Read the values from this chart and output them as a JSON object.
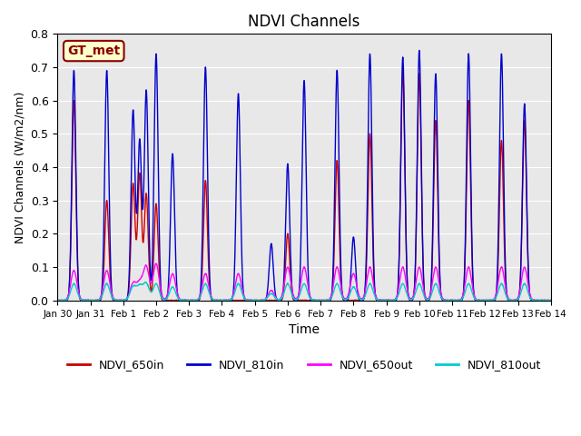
{
  "title": "NDVI Channels",
  "xlabel": "Time",
  "ylabel": "NDVI Channels (W/m2/nm)",
  "ylim": [
    0.0,
    0.8
  ],
  "background_color": "#e8e8e8",
  "label_text": "GT_met",
  "label_bg": "#ffffcc",
  "label_border": "#8b0000",
  "legend_labels": [
    "NDVI_650in",
    "NDVI_810in",
    "NDVI_650out",
    "NDVI_810out"
  ],
  "line_colors": [
    "#cc0000",
    "#0000cc",
    "#ff00ff",
    "#00cccc"
  ],
  "xtick_labels": [
    "Jan 30",
    "Jan 31",
    "Feb 1",
    "Feb 2",
    "Feb 3",
    "Feb 4",
    "Feb 5",
    "Feb 6",
    "Feb 7",
    "Feb 8",
    "Feb 9",
    "Feb 10",
    "Feb 11",
    "Feb 12",
    "Feb 13",
    "Feb 14"
  ],
  "n_days": 15,
  "peak_times": [
    0.5,
    1.5,
    2.3,
    2.5,
    2.7,
    3.0,
    3.5,
    4.5,
    5.5,
    6.5,
    7.0,
    7.5,
    8.5,
    9.0,
    9.5,
    10.5,
    11.0,
    11.5,
    12.5,
    13.5,
    14.2
  ],
  "peaks_810in": [
    0.69,
    0.69,
    0.57,
    0.48,
    0.63,
    0.74,
    0.44,
    0.7,
    0.62,
    0.17,
    0.41,
    0.66,
    0.69,
    0.19,
    0.74,
    0.73,
    0.75,
    0.68,
    0.74,
    0.74,
    0.59
  ],
  "peaks_650in": [
    0.6,
    0.3,
    0.35,
    0.38,
    0.32,
    0.29,
    0.0,
    0.36,
    0.0,
    0.0,
    0.2,
    0.0,
    0.42,
    0.0,
    0.5,
    0.69,
    0.68,
    0.54,
    0.6,
    0.48,
    0.54
  ],
  "peaks_650out": [
    0.09,
    0.09,
    0.05,
    0.05,
    0.1,
    0.11,
    0.08,
    0.08,
    0.08,
    0.03,
    0.1,
    0.1,
    0.1,
    0.08,
    0.1,
    0.1,
    0.1,
    0.1,
    0.1,
    0.1,
    0.1
  ],
  "peaks_810out": [
    0.05,
    0.05,
    0.04,
    0.04,
    0.05,
    0.05,
    0.04,
    0.05,
    0.05,
    0.02,
    0.05,
    0.05,
    0.05,
    0.04,
    0.05,
    0.05,
    0.05,
    0.05,
    0.05,
    0.05,
    0.05
  ]
}
